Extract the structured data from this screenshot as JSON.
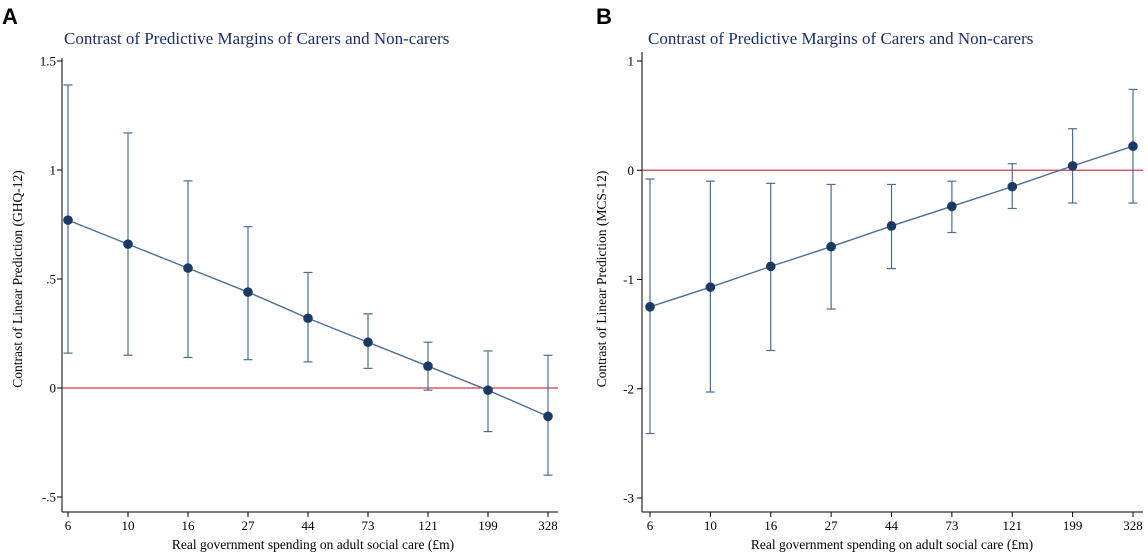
{
  "figure": {
    "background": "#ffffff",
    "colors": {
      "series_line": "#4a6f93",
      "series_marker": "#1a3a63",
      "error_bar": "#4a6f93",
      "reference_line": "#d9364a",
      "title": "#1a2f6b",
      "axis": "#000000"
    }
  },
  "chart_data": [
    {
      "panel_label": "A",
      "type": "line",
      "title": "Contrast of Predictive Margins of Carers and Non-carers",
      "xlabel": "Real government spending on adult social care (£m)",
      "ylabel": "Contrast of Linear Prediction (GHQ-12)",
      "categories": [
        "6",
        "10",
        "16",
        "27",
        "44",
        "73",
        "121",
        "199",
        "328"
      ],
      "ylim": [
        -0.55,
        1.55
      ],
      "yticks": [
        -0.5,
        0,
        0.5,
        1,
        1.5
      ],
      "ytick_labels": [
        "-.5",
        "0",
        ".5",
        "1",
        "1.5"
      ],
      "reference_line_y": 0,
      "series": [
        {
          "values": [
            0.77,
            0.66,
            0.55,
            0.44,
            0.32,
            0.21,
            0.1,
            -0.01,
            -0.13
          ],
          "ci_lower": [
            0.16,
            0.15,
            0.14,
            0.13,
            0.12,
            0.09,
            -0.01,
            -0.2,
            -0.4
          ],
          "ci_upper": [
            1.39,
            1.17,
            0.95,
            0.74,
            0.53,
            0.34,
            0.21,
            0.17,
            0.15
          ]
        }
      ],
      "grid": false,
      "legend": "none"
    },
    {
      "panel_label": "B",
      "type": "line",
      "title": "Contrast of Predictive Margins of Carers and Non-carers",
      "xlabel": "Real government spending on adult social care (£m)",
      "ylabel": "Contrast of Linear Prediction (MCS-12)",
      "categories": [
        "6",
        "10",
        "16",
        "27",
        "44",
        "73",
        "121",
        "199",
        "328"
      ],
      "ylim": [
        -3.05,
        1.1
      ],
      "yticks": [
        -3,
        -2,
        -1,
        0,
        1
      ],
      "ytick_labels": [
        "-3",
        "-2",
        "-1",
        "0",
        "1"
      ],
      "reference_line_y": 0,
      "series": [
        {
          "values": [
            -1.25,
            -1.07,
            -0.88,
            -0.7,
            -0.51,
            -0.33,
            -0.15,
            0.04,
            0.22
          ],
          "ci_lower": [
            -2.41,
            -2.03,
            -1.65,
            -1.27,
            -0.9,
            -0.57,
            -0.35,
            -0.3,
            -0.3
          ],
          "ci_upper": [
            -0.08,
            -0.1,
            -0.12,
            -0.13,
            -0.13,
            -0.1,
            0.06,
            0.38,
            0.74
          ]
        }
      ],
      "grid": false,
      "legend": "none"
    }
  ]
}
